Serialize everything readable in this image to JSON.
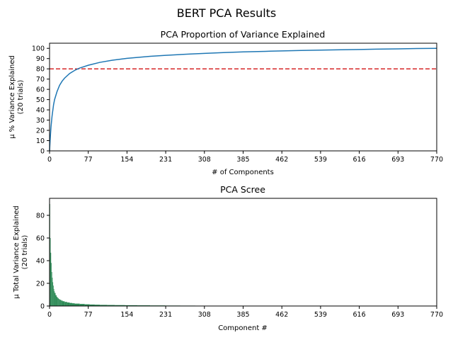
{
  "figure_title": "BERT PCA Results",
  "chart_data": [
    {
      "type": "line",
      "title": "PCA Proportion of Variance Explained",
      "xlabel": "# of Components",
      "ylabel_line1": "μ % Variance Explained",
      "ylabel_line2": "(20 trials)",
      "xlim": [
        0,
        770
      ],
      "ylim": [
        0,
        105
      ],
      "xticks": [
        0,
        77,
        154,
        231,
        308,
        385,
        462,
        539,
        616,
        693,
        770
      ],
      "yticks": [
        0,
        10,
        20,
        30,
        40,
        50,
        60,
        70,
        80,
        90,
        100
      ],
      "grid": false,
      "reference_line": {
        "y": 80,
        "style": "dashed",
        "color": "#d62728"
      },
      "series": [
        {
          "color": "#1f77b4",
          "x": [
            0,
            1,
            2,
            3,
            5,
            8,
            10,
            15,
            20,
            25,
            30,
            40,
            50,
            60,
            77,
            100,
            125,
            154,
            200,
            231,
            280,
            308,
            350,
            385,
            430,
            462,
            500,
            539,
            580,
            616,
            650,
            693,
            730,
            770
          ],
          "y": [
            0,
            9,
            17,
            24,
            34,
            45,
            50,
            58,
            64,
            68,
            71,
            75.5,
            78.5,
            80.8,
            83.5,
            86.3,
            88.4,
            90.2,
            92.2,
            93.2,
            94.5,
            95.1,
            95.9,
            96.5,
            97.1,
            97.5,
            97.9,
            98.3,
            98.6,
            98.9,
            99.2,
            99.5,
            99.8,
            100
          ]
        }
      ]
    },
    {
      "type": "bar",
      "title": "PCA Scree",
      "xlabel": "Component #",
      "ylabel_line1": "μ Total Variance Explained",
      "ylabel_line2": "(20 trials)",
      "xlim": [
        0,
        770
      ],
      "ylim": [
        0,
        95
      ],
      "xticks": [
        0,
        77,
        154,
        231,
        308,
        385,
        462,
        539,
        616,
        693,
        770
      ],
      "yticks": [
        0,
        20,
        40,
        60,
        80
      ],
      "color": "#2e8b57",
      "bars": [
        {
          "x": 0,
          "y": 90
        },
        {
          "x": 1,
          "y": 60
        },
        {
          "x": 2,
          "y": 47
        },
        {
          "x": 3,
          "y": 38
        },
        {
          "x": 4,
          "y": 30
        },
        {
          "x": 5,
          "y": 25
        },
        {
          "x": 6,
          "y": 21
        },
        {
          "x": 7,
          "y": 18
        },
        {
          "x": 8,
          "y": 15
        },
        {
          "x": 9,
          "y": 13
        },
        {
          "x": 10,
          "y": 11.5
        },
        {
          "x": 12,
          "y": 9.5
        },
        {
          "x": 14,
          "y": 8
        },
        {
          "x": 16,
          "y": 7
        },
        {
          "x": 18,
          "y": 6.2
        },
        {
          "x": 20,
          "y": 5.5
        },
        {
          "x": 23,
          "y": 4.8
        },
        {
          "x": 26,
          "y": 4.2
        },
        {
          "x": 30,
          "y": 3.6
        },
        {
          "x": 35,
          "y": 3.1
        },
        {
          "x": 40,
          "y": 2.7
        },
        {
          "x": 45,
          "y": 2.4
        },
        {
          "x": 50,
          "y": 2.1
        },
        {
          "x": 60,
          "y": 1.8
        },
        {
          "x": 70,
          "y": 1.5
        },
        {
          "x": 80,
          "y": 1.3
        },
        {
          "x": 90,
          "y": 1.15
        },
        {
          "x": 100,
          "y": 1.0
        },
        {
          "x": 115,
          "y": 0.9
        },
        {
          "x": 130,
          "y": 0.8
        },
        {
          "x": 150,
          "y": 0.7
        },
        {
          "x": 175,
          "y": 0.6
        },
        {
          "x": 200,
          "y": 0.5
        },
        {
          "x": 230,
          "y": 0.4
        },
        {
          "x": 260,
          "y": 0.35
        },
        {
          "x": 290,
          "y": 0.3
        },
        {
          "x": 320,
          "y": 0.25
        },
        {
          "x": 350,
          "y": 0.2
        }
      ]
    }
  ]
}
